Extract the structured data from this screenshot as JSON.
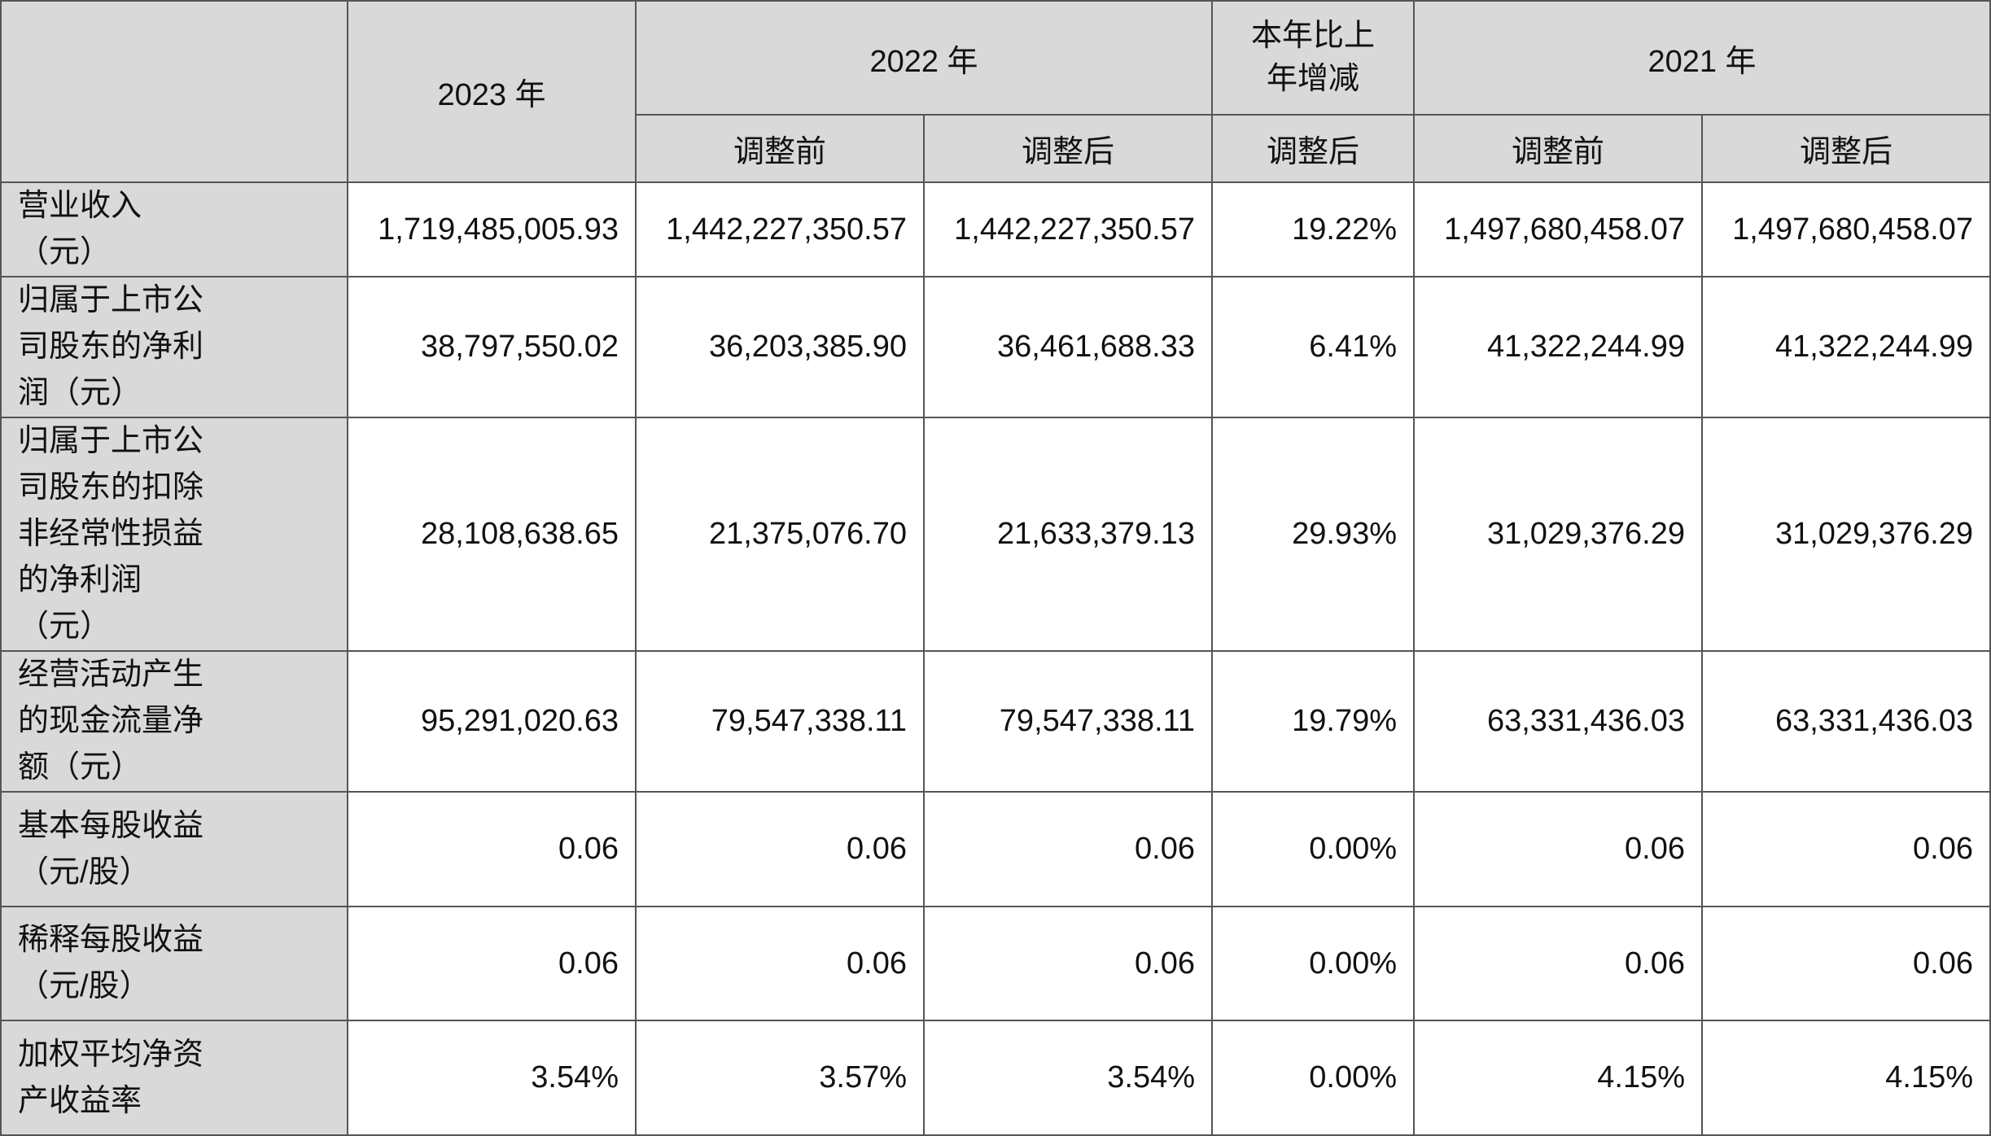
{
  "table": {
    "header": {
      "year_2023": "2023 年",
      "year_2022": "2022 年",
      "change": "本年比上年增减",
      "year_2021": "2021 年",
      "sub": [
        "调整前",
        "调整后",
        "调整后",
        "调整前",
        "调整后"
      ]
    },
    "rows": [
      {
        "label": "营业收入（元）",
        "values": [
          "1,719,485,005.93",
          "1,442,227,350.57",
          "1,442,227,350.57",
          "19.22%",
          "1,497,680,458.07",
          "1,497,680,458.07"
        ]
      },
      {
        "label": "归属于上市公司股东的净利润（元）",
        "values": [
          "38,797,550.02",
          "36,203,385.90",
          "36,461,688.33",
          "6.41%",
          "41,322,244.99",
          "41,322,244.99"
        ]
      },
      {
        "label": "归属于上市公司股东的扣除非经常性损益的净利润（元）",
        "values": [
          "28,108,638.65",
          "21,375,076.70",
          "21,633,379.13",
          "29.93%",
          "31,029,376.29",
          "31,029,376.29"
        ]
      },
      {
        "label": "经营活动产生的现金流量净额（元）",
        "values": [
          "95,291,020.63",
          "79,547,338.11",
          "79,547,338.11",
          "19.79%",
          "63,331,436.03",
          "63,331,436.03"
        ]
      },
      {
        "label": "基本每股收益（元/股）",
        "values": [
          "0.06",
          "0.06",
          "0.06",
          "0.00%",
          "0.06",
          "0.06"
        ]
      },
      {
        "label": "稀释每股收益（元/股）",
        "values": [
          "0.06",
          "0.06",
          "0.06",
          "0.00%",
          "0.06",
          "0.06"
        ]
      },
      {
        "label": "加权平均净资产收益率",
        "values": [
          "3.54%",
          "3.57%",
          "3.54%",
          "0.00%",
          "4.15%",
          "4.15%"
        ]
      }
    ]
  }
}
